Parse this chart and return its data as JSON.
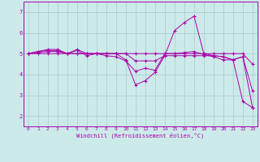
{
  "title": "",
  "xlabel": "Windchill (Refroidissement éolien,°C)",
  "xlim": [
    -0.5,
    23.5
  ],
  "ylim": [
    1.5,
    7.5
  ],
  "yticks": [
    2,
    3,
    4,
    5,
    6,
    7
  ],
  "xticks": [
    0,
    1,
    2,
    3,
    4,
    5,
    6,
    7,
    8,
    9,
    10,
    11,
    12,
    13,
    14,
    15,
    16,
    17,
    18,
    19,
    20,
    21,
    22,
    23
  ],
  "background_color": "#cceaea",
  "grid_color": "#aacccc",
  "line_color": "#aa00aa",
  "lines": [
    [
      5.0,
      5.1,
      5.2,
      5.2,
      5.0,
      5.15,
      4.9,
      5.0,
      5.0,
      5.0,
      4.7,
      3.5,
      3.7,
      4.1,
      4.9,
      6.1,
      6.5,
      6.8,
      5.0,
      4.9,
      4.85,
      4.7,
      4.85,
      2.4
    ],
    [
      5.0,
      5.05,
      5.1,
      5.1,
      5.0,
      5.0,
      5.0,
      5.0,
      5.0,
      5.0,
      5.0,
      5.0,
      5.0,
      5.0,
      5.0,
      5.0,
      5.0,
      5.0,
      5.0,
      5.0,
      5.0,
      5.0,
      5.0,
      4.5
    ],
    [
      5.0,
      5.0,
      5.0,
      5.0,
      5.0,
      5.0,
      5.0,
      5.0,
      5.0,
      5.0,
      5.0,
      4.65,
      4.65,
      4.65,
      4.9,
      4.9,
      4.9,
      4.9,
      4.9,
      4.9,
      4.85,
      4.7,
      2.7,
      2.4
    ],
    [
      5.0,
      5.1,
      5.15,
      5.15,
      5.0,
      5.2,
      5.0,
      5.0,
      4.9,
      4.85,
      4.65,
      4.15,
      4.3,
      4.2,
      5.0,
      5.0,
      5.05,
      5.1,
      4.95,
      4.85,
      4.7,
      4.7,
      4.85,
      3.2
    ]
  ]
}
